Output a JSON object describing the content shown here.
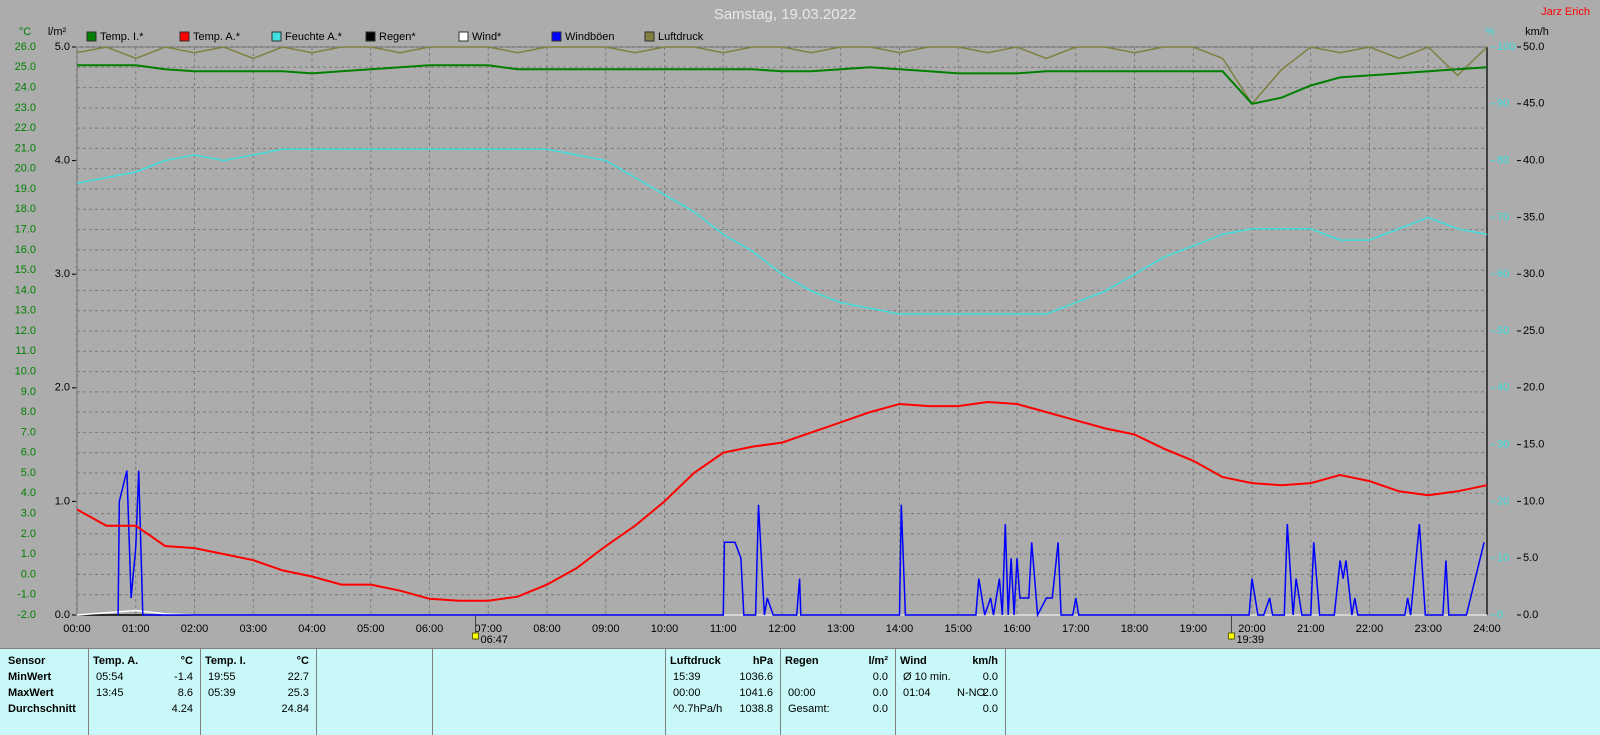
{
  "header": {
    "title": "Samstag, 19.03.2022",
    "author": "Jarz Erich"
  },
  "chart_data": {
    "type": "line",
    "axis_units": {
      "y": "°C",
      "y3": "l/m²",
      "y2": "%",
      "y4": "km/h"
    },
    "x": [
      0,
      0.5,
      1,
      1.5,
      2,
      2.5,
      3,
      3.5,
      4,
      4.5,
      5,
      5.5,
      6,
      6.5,
      7,
      7.5,
      8,
      8.5,
      9,
      9.5,
      10,
      10.5,
      11,
      11.5,
      12,
      12.5,
      13,
      13.5,
      14,
      14.5,
      15,
      15.5,
      16,
      16.5,
      17,
      17.5,
      18,
      18.5,
      19,
      19.5,
      20,
      20.5,
      21,
      21.5,
      22,
      22.5,
      23,
      23.5,
      24
    ],
    "xlim": [
      0,
      24
    ],
    "xticks": [
      {
        "value": 0,
        "label": "00:00"
      },
      {
        "value": 1,
        "label": "01:00"
      },
      {
        "value": 2,
        "label": "02:00"
      },
      {
        "value": 3,
        "label": "03:00"
      },
      {
        "value": 4,
        "label": "04:00"
      },
      {
        "value": 5,
        "label": "05:00"
      },
      {
        "value": 6,
        "label": "06:00"
      },
      {
        "value": 7,
        "label": "07:00"
      },
      {
        "value": 8,
        "label": "08:00"
      },
      {
        "value": 9,
        "label": "09:00"
      },
      {
        "value": 10,
        "label": "10:00"
      },
      {
        "value": 11,
        "label": "11:00"
      },
      {
        "value": 12,
        "label": "12:00"
      },
      {
        "value": 13,
        "label": "13:00"
      },
      {
        "value": 14,
        "label": "14:00"
      },
      {
        "value": 15,
        "label": "15:00"
      },
      {
        "value": 16,
        "label": "16:00"
      },
      {
        "value": 17,
        "label": "17:00"
      },
      {
        "value": 18,
        "label": "18:00"
      },
      {
        "value": 19,
        "label": "19:00"
      },
      {
        "value": 20,
        "label": "20:00"
      },
      {
        "value": 21,
        "label": "21:00"
      },
      {
        "value": 22,
        "label": "22:00"
      },
      {
        "value": 23,
        "label": "23:00"
      },
      {
        "value": 24,
        "label": "24:00"
      }
    ],
    "ylim": [
      -2,
      26
    ],
    "yticks": [
      {
        "value": -2,
        "label": "-2.0"
      },
      {
        "value": -1,
        "label": "-1.0"
      },
      {
        "value": 0,
        "label": "0.0"
      },
      {
        "value": 1,
        "label": "1.0"
      },
      {
        "value": 2,
        "label": "2.0"
      },
      {
        "value": 3,
        "label": "3.0"
      },
      {
        "value": 4,
        "label": "4.0"
      },
      {
        "value": 5,
        "label": "5.0"
      },
      {
        "value": 6,
        "label": "6.0"
      },
      {
        "value": 7,
        "label": "7.0"
      },
      {
        "value": 8,
        "label": "8.0"
      },
      {
        "value": 9,
        "label": "9.0"
      },
      {
        "value": 10,
        "label": "10.0"
      },
      {
        "value": 11,
        "label": "11.0"
      },
      {
        "value": 12,
        "label": "12.0"
      },
      {
        "value": 13,
        "label": "13.0"
      },
      {
        "value": 14,
        "label": "14.0"
      },
      {
        "value": 15,
        "label": "15.0"
      },
      {
        "value": 16,
        "label": "16.0"
      },
      {
        "value": 17,
        "label": "17.0"
      },
      {
        "value": 18,
        "label": "18.0"
      },
      {
        "value": 19,
        "label": "19.0"
      },
      {
        "value": 20,
        "label": "20.0"
      },
      {
        "value": 21,
        "label": "21.0"
      },
      {
        "value": 22,
        "label": "22.0"
      },
      {
        "value": 23,
        "label": "23.0"
      },
      {
        "value": 24,
        "label": "24.0"
      },
      {
        "value": 25,
        "label": "25.0"
      },
      {
        "value": 26,
        "label": "26.0"
      }
    ],
    "y2lim": [
      0,
      100
    ],
    "y2ticks": [
      0,
      10,
      20,
      30,
      40,
      50,
      60,
      70,
      80,
      90,
      100
    ],
    "y3lim": [
      0,
      5
    ],
    "y3ticks": [
      {
        "value": 0,
        "label": "0.0"
      },
      {
        "value": 1,
        "label": "1.0"
      },
      {
        "value": 2,
        "label": "2.0"
      },
      {
        "value": 3,
        "label": "3.0"
      },
      {
        "value": 4,
        "label": "4.0"
      },
      {
        "value": 5,
        "label": "5.0"
      }
    ],
    "y4lim": [
      0,
      50
    ],
    "y4ticks": [
      {
        "value": 0,
        "label": "0.0"
      },
      {
        "value": 5,
        "label": "5.0"
      },
      {
        "value": 10,
        "label": "10.0"
      },
      {
        "value": 15,
        "label": "15.0"
      },
      {
        "value": 20,
        "label": "20.0"
      },
      {
        "value": 25,
        "label": "25.0"
      },
      {
        "value": 30,
        "label": "30.0"
      },
      {
        "value": 35,
        "label": "35.0"
      },
      {
        "value": 40,
        "label": "40.0"
      },
      {
        "value": 45,
        "label": "45.0"
      },
      {
        "value": 50,
        "label": "50.0"
      }
    ],
    "grid": true,
    "annotations": [
      {
        "x": 6.7833,
        "label": "06:47"
      },
      {
        "x": 19.65,
        "label": "19:39"
      }
    ],
    "series": [
      {
        "name": "Temp. I.*",
        "color": "#008000",
        "axis": "y",
        "values": [
          25.1,
          25.1,
          25.1,
          24.9,
          24.8,
          24.8,
          24.8,
          24.8,
          24.7,
          24.8,
          24.9,
          25.0,
          25.1,
          25.1,
          25.1,
          24.9,
          24.9,
          24.9,
          24.9,
          24.9,
          24.9,
          24.9,
          24.9,
          24.9,
          24.8,
          24.8,
          24.9,
          25.0,
          24.9,
          24.8,
          24.7,
          24.7,
          24.7,
          24.8,
          24.8,
          24.8,
          24.8,
          24.8,
          24.8,
          24.8,
          23.2,
          23.5,
          24.1,
          24.5,
          24.6,
          24.7,
          24.8,
          24.9,
          25.0
        ]
      },
      {
        "name": "Temp. A.*",
        "color": "#ff0000",
        "axis": "y",
        "values": [
          3.2,
          2.4,
          2.4,
          1.4,
          1.3,
          1.0,
          0.7,
          0.2,
          -0.1,
          -0.5,
          -0.5,
          -0.8,
          -1.2,
          -1.3,
          -1.3,
          -1.1,
          -0.5,
          0.3,
          1.4,
          2.4,
          3.6,
          5.0,
          6.0,
          6.3,
          6.5,
          7.0,
          7.5,
          8.0,
          8.4,
          8.3,
          8.3,
          8.5,
          8.4,
          8.0,
          7.6,
          7.2,
          6.9,
          6.2,
          5.6,
          4.8,
          4.5,
          4.4,
          4.5,
          4.9,
          4.6,
          4.1,
          3.9,
          4.1,
          4.4
        ]
      },
      {
        "name": "Feuchte A.*",
        "color": "#40e0e0",
        "axis": "y2",
        "values": [
          76,
          77,
          78,
          80,
          81,
          80,
          81,
          82,
          82,
          82,
          82,
          82,
          82,
          82,
          82,
          82,
          82,
          81,
          80,
          77,
          74,
          71,
          67,
          64,
          60,
          57,
          55,
          54,
          53,
          53,
          53,
          53,
          53,
          53,
          55,
          57,
          60,
          63,
          65,
          67,
          68,
          68,
          68,
          66,
          66,
          68,
          70,
          68,
          67
        ]
      },
      {
        "name": "Regen*",
        "color": "#000000",
        "axis": "y3",
        "values": [
          0,
          0,
          0,
          0,
          0,
          0,
          0,
          0,
          0,
          0,
          0,
          0,
          0,
          0,
          0,
          0,
          0,
          0,
          0,
          0,
          0,
          0,
          0,
          0,
          0,
          0,
          0,
          0,
          0,
          0,
          0,
          0,
          0,
          0,
          0,
          0,
          0,
          0,
          0,
          0,
          0,
          0,
          0,
          0,
          0,
          0,
          0,
          0,
          0
        ]
      },
      {
        "name": "Wind*",
        "color": "#ffffff",
        "axis": "y4",
        "values": [
          0,
          0.2,
          0.4,
          0.1,
          0,
          0,
          0,
          0,
          0,
          0,
          0,
          0,
          0,
          0,
          0,
          0,
          0,
          0,
          0,
          0,
          0,
          0,
          0,
          0,
          0,
          0,
          0,
          0,
          0,
          0,
          0,
          0,
          0,
          0,
          0,
          0,
          0,
          0,
          0,
          0,
          0,
          0,
          0,
          0,
          0,
          0,
          0,
          0,
          0
        ]
      },
      {
        "name": "Windböen",
        "color": "#0000ff",
        "axis": "y4",
        "x": [
          0.7,
          0.72,
          0.85,
          0.92,
          1.0,
          1.05,
          1.12,
          11.0,
          11.02,
          11.2,
          11.3,
          11.35,
          11.55,
          11.6,
          11.7,
          11.75,
          11.85,
          12.25,
          12.3,
          12.32,
          14.0,
          14.03,
          14.1,
          15.3,
          15.35,
          15.45,
          15.55,
          15.6,
          15.7,
          15.75,
          15.8,
          15.85,
          15.9,
          15.95,
          16.0,
          16.05,
          16.2,
          16.25,
          16.35,
          16.5,
          16.6,
          16.7,
          16.75,
          16.95,
          17.0,
          17.05,
          19.95,
          20.0,
          20.1,
          20.2,
          20.3,
          20.35,
          20.55,
          20.6,
          20.7,
          20.75,
          20.85,
          21.0,
          21.05,
          21.15,
          21.4,
          21.5,
          21.55,
          21.6,
          21.7,
          21.75,
          21.8,
          22.6,
          22.65,
          22.7,
          22.85,
          22.95,
          23.25,
          23.3,
          23.35,
          23.65,
          23.95
        ],
        "values": [
          0,
          10,
          12.7,
          1.5,
          6,
          12.7,
          0,
          0,
          6.4,
          6.4,
          5,
          0,
          0,
          9.7,
          0,
          1.5,
          0,
          0,
          3.2,
          0,
          0,
          9.7,
          0,
          0,
          3.2,
          0,
          1.5,
          0,
          3.2,
          0,
          8,
          0,
          5,
          0,
          5,
          1.5,
          1.5,
          6.4,
          0,
          1.5,
          1.5,
          6.4,
          0,
          0,
          1.5,
          0,
          0,
          3.2,
          0,
          0,
          1.5,
          0,
          0,
          8,
          0,
          3.2,
          0,
          0,
          6.4,
          0,
          0,
          4.8,
          3.2,
          4.8,
          0,
          1.5,
          0,
          0,
          1.5,
          0,
          8,
          0,
          0,
          4.8,
          0,
          0,
          6.4
        ]
      },
      {
        "name": "Luftdruck",
        "color": "#808040",
        "axis": "y2",
        "values": [
          99,
          100,
          98,
          100,
          99,
          100,
          98,
          100,
          99,
          100,
          100,
          99,
          100,
          100,
          100,
          99,
          100,
          100,
          100,
          99,
          100,
          100,
          99,
          100,
          100,
          99,
          100,
          100,
          99,
          100,
          100,
          99,
          100,
          98,
          100,
          100,
          99,
          100,
          100,
          98,
          90,
          96,
          100,
          99,
          100,
          98,
          100,
          95,
          100
        ]
      }
    ]
  },
  "stats_table": {
    "row_labels": [
      "Sensor",
      "MinWert",
      "MaxWert",
      "Durchschnitt"
    ],
    "blocks": [
      {
        "name": "Temp. A.",
        "unit": "°C",
        "rows": [
          {
            "time": "05:54",
            "value": "-1.4"
          },
          {
            "time": "13:45",
            "value": "8.6"
          },
          {
            "value": "4.24"
          }
        ]
      },
      {
        "name": "Temp. I.",
        "unit": "°C",
        "rows": [
          {
            "time": "19:55",
            "value": "22.7"
          },
          {
            "time": "05:39",
            "value": "25.3"
          },
          {
            "value": "24.84"
          }
        ]
      },
      {
        "name": "Luftdruck",
        "unit": "hPa",
        "rows": [
          {
            "time": "15:39",
            "value": "1036.6"
          },
          {
            "time": "00:00",
            "value": "1041.6"
          },
          {
            "time": "^0.7hPa/h",
            "value": "1038.8"
          }
        ]
      },
      {
        "name": "Regen",
        "unit": "l/m²",
        "rows": [
          {
            "value": "0.0"
          },
          {
            "time": "00:00",
            "value": "0.0"
          },
          {
            "time": "Gesamt:",
            "value": "0.0"
          }
        ]
      },
      {
        "name": "Wind",
        "unit": "km/h",
        "rows": [
          {
            "time": "Ø 10 min.",
            "value": "0.0"
          },
          {
            "time": "01:04",
            "dir": "N-NO",
            "value": "2.0"
          },
          {
            "value": "0.0"
          }
        ]
      }
    ]
  }
}
